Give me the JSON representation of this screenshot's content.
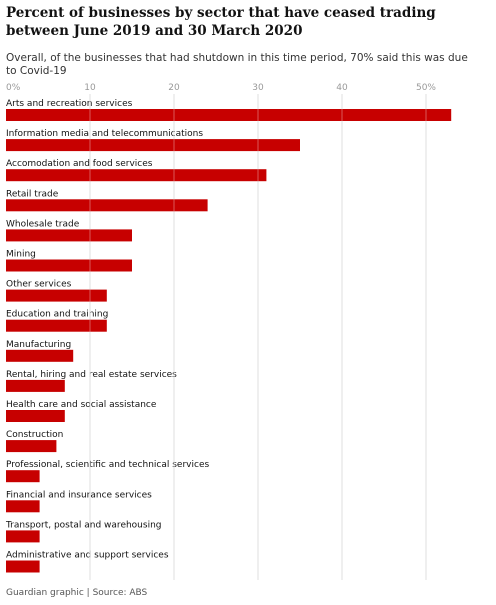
{
  "chart_data": {
    "type": "bar",
    "orientation": "horizontal",
    "title": "Percent of businesses by sector that have ceased trading between June 2019 and 30 March 2020",
    "subtitle": "Overall, of the businesses that had shutdown in this time period, 70% said this was due to Covid-19",
    "x_ticks": [
      "0%",
      "10",
      "20",
      "30",
      "40",
      "50%"
    ],
    "xlim": [
      0,
      53
    ],
    "grid": "vertical",
    "bar_color": "#c70000",
    "categories": [
      "Arts and recreation services",
      "Information media and telecommunications",
      "Accomodation and food services",
      "Retail trade",
      "Wholesale trade",
      "Mining",
      "Other services",
      "Education and training",
      "Manufacturing",
      "Rental, hiring and real estate services",
      "Health care and social assistance",
      "Construction",
      "Professional, scientific and technical services",
      "Financial and insurance services",
      "Transport, postal and warehousing",
      "Administrative and support services"
    ],
    "values": [
      53,
      35,
      31,
      24,
      15,
      15,
      12,
      12,
      8,
      7,
      7,
      6,
      4,
      4,
      4,
      4
    ]
  },
  "source": "Guardian graphic | Source: ABS"
}
